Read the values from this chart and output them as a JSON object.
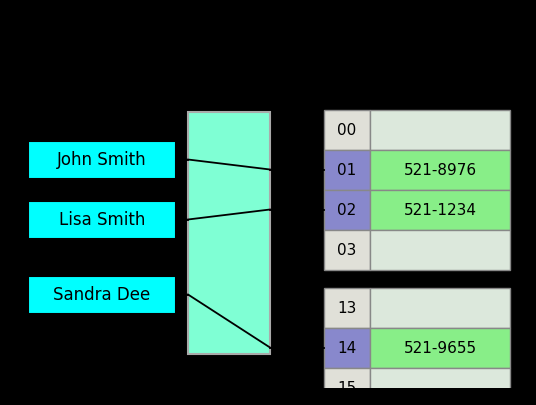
{
  "background_color": "#000000",
  "names": [
    "John Smith",
    "Lisa Smith",
    "Sandra Dee"
  ],
  "name_box_color": "#00ffff",
  "name_box_edge": "#000000",
  "hash_box_color": "#7fffd4",
  "hash_box_edge": "#aaaaaa",
  "num_color_normal": "#e0e0d8",
  "num_color_active": "#8888cc",
  "val_color_normal": "#dce8dc",
  "val_color_active": "#88ee88",
  "table_edge": "#888888",
  "line_color": "#000000",
  "font_size_names": 12,
  "font_size_table": 11,
  "group1_rows": [
    "00",
    "01",
    "02",
    "03"
  ],
  "group1_values": [
    "",
    "521-8976",
    "521-1234",
    ""
  ],
  "group1_active": [
    false,
    true,
    true,
    false
  ],
  "group2_rows": [
    "13",
    "14",
    "15"
  ],
  "group2_values": [
    "",
    "521-9655",
    ""
  ],
  "group2_active": [
    false,
    true,
    false
  ]
}
